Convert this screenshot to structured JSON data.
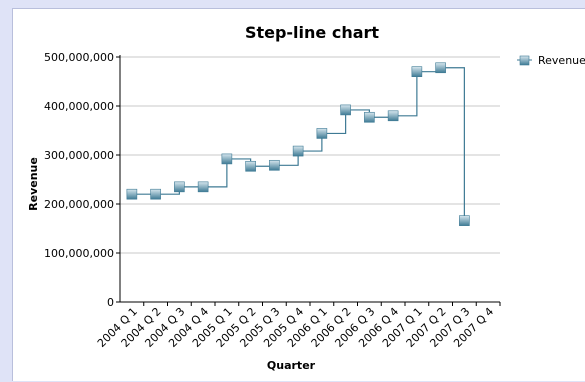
{
  "chart_data": {
    "type": "line",
    "title": "Step-line chart",
    "xlabel": "Quarter",
    "ylabel": "Revenue",
    "categories": [
      "2004 Q 1",
      "2004 Q 2",
      "2004 Q 3",
      "2004 Q 4",
      "2005 Q 1",
      "2005 Q 2",
      "2005 Q 3",
      "2005 Q 4",
      "2006 Q 1",
      "2006 Q 2",
      "2006 Q 3",
      "2006 Q 4",
      "2007 Q 1",
      "2007 Q 2",
      "2007 Q 3",
      "2007 Q 4"
    ],
    "series": [
      {
        "name": "Revenue",
        "values": [
          220000000,
          220000000,
          235000000,
          235000000,
          292000000,
          277000000,
          279000000,
          308000000,
          344000000,
          392000000,
          377000000,
          380000000,
          470000000,
          478000000,
          166000000,
          null
        ]
      }
    ],
    "ylim": [
      0,
      500000000
    ],
    "yticks": [
      0,
      100000000,
      200000000,
      300000000,
      400000000,
      500000000
    ],
    "ytick_labels": [
      "0",
      "100,000,000",
      "200,000,000",
      "300,000,000",
      "400,000,000",
      "500,000,000"
    ],
    "grid": true,
    "legend": "right",
    "colors": {
      "line": "#3e7a94",
      "marker_top": "#d6e6ee",
      "marker_bottom": "#3f7b95"
    }
  }
}
